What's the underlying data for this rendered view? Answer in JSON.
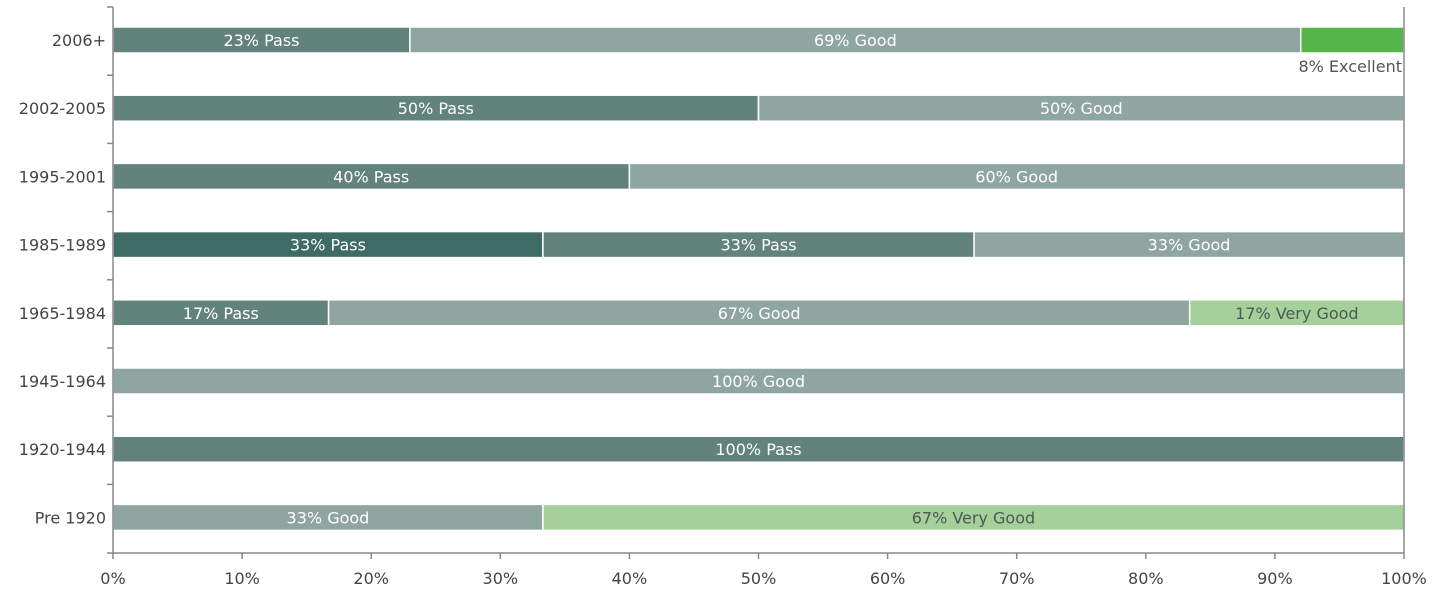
{
  "chart_data": {
    "type": "bar",
    "orientation": "horizontal",
    "stacked": true,
    "title": "",
    "xlabel": "",
    "ylabel": "",
    "xlim": [
      0,
      100
    ],
    "x_ticks": [
      "0%",
      "10%",
      "20%",
      "30%",
      "40%",
      "50%",
      "60%",
      "70%",
      "80%",
      "90%",
      "100%"
    ],
    "grid": false,
    "legend": "none",
    "colors": {
      "pass_dark": "#3e6b63",
      "pass": "#62827c",
      "good": "#8ea5a0",
      "very_good": "#a5d09a",
      "excellent": "#56b64b",
      "axis": "#888888"
    },
    "rows": [
      {
        "category": "2006+",
        "segments": [
          {
            "value": 23,
            "label": "23% Pass",
            "color": "pass"
          },
          {
            "value": 69,
            "label": "69% Good",
            "color": "good"
          },
          {
            "value": 8,
            "label": "8% Excellent",
            "color": "excellent",
            "label_position": "below"
          }
        ]
      },
      {
        "category": "2002-2005",
        "segments": [
          {
            "value": 50,
            "label": "50% Pass",
            "color": "pass"
          },
          {
            "value": 50,
            "label": "50% Good",
            "color": "good"
          }
        ]
      },
      {
        "category": "1995-2001",
        "segments": [
          {
            "value": 40,
            "label": "40% Pass",
            "color": "pass"
          },
          {
            "value": 60,
            "label": "60% Good",
            "color": "good"
          }
        ]
      },
      {
        "category": "1985-1989",
        "segments": [
          {
            "value": 33.3,
            "label": "33% Pass",
            "color": "pass_dark"
          },
          {
            "value": 33.4,
            "label": "33% Pass",
            "color": "pass"
          },
          {
            "value": 33.3,
            "label": "33% Good",
            "color": "good"
          }
        ]
      },
      {
        "category": "1965-1984",
        "segments": [
          {
            "value": 16.7,
            "label": "17% Pass",
            "color": "pass"
          },
          {
            "value": 66.7,
            "label": "67% Good",
            "color": "good"
          },
          {
            "value": 16.6,
            "label": "17% Very Good",
            "color": "very_good"
          }
        ]
      },
      {
        "category": "1945-1964",
        "segments": [
          {
            "value": 100,
            "label": "100% Good",
            "color": "good"
          }
        ]
      },
      {
        "category": "1920-1944",
        "segments": [
          {
            "value": 100,
            "label": "100% Pass",
            "color": "pass"
          }
        ]
      },
      {
        "category": "Pre 1920",
        "segments": [
          {
            "value": 33.3,
            "label": "33% Good",
            "color": "good"
          },
          {
            "value": 66.7,
            "label": "67% Very Good",
            "color": "very_good"
          }
        ]
      }
    ]
  }
}
